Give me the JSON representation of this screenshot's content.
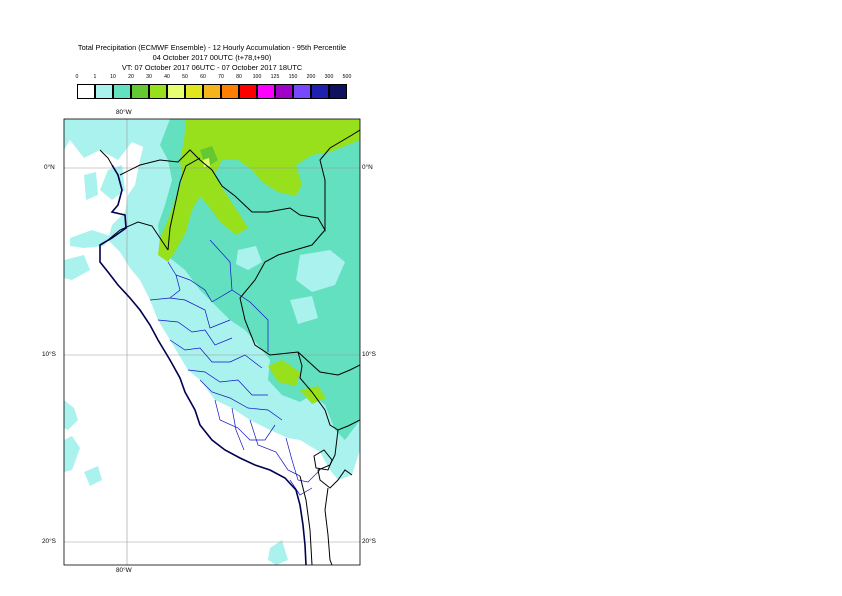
{
  "title": {
    "line1": "Total Precipitation (ECMWF Ensemble) - 12 Hourly Accumulation - 95th Percentile",
    "line2": "04 October 2017 00UTC (t+78,t+90)",
    "line3": "VT: 07 October 2017 06UTC - 07 October 2017 18UTC"
  },
  "legend": {
    "labels": [
      "0",
      "1",
      "10",
      "20",
      "30",
      "40",
      "50",
      "60",
      "70",
      "80",
      "100",
      "125",
      "150",
      "200",
      "300",
      "500"
    ],
    "colors": [
      "#ffffff",
      "#aaf2ee",
      "#62e0c0",
      "#64c832",
      "#98e01c",
      "#e6ff72",
      "#e2e61c",
      "#f6b41c",
      "#ff8000",
      "#ff0000",
      "#ff00ff",
      "#a000c8",
      "#7848ff",
      "#2020b0",
      "#101060"
    ]
  },
  "axes": {
    "lon_top": "80°W",
    "lon_bottom": "80°W",
    "lat_labels": [
      "0°N",
      "10°S",
      "20°S"
    ]
  },
  "colors": {
    "light_precip": "#aaf2ee",
    "moderate_precip": "#62e0c0",
    "heavy_precip": "#98e01c",
    "country_border": "#000000",
    "region_border": "#1414c8",
    "coastline": "#000050"
  }
}
